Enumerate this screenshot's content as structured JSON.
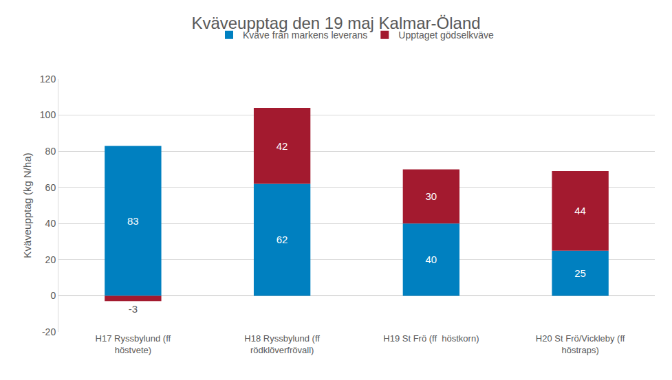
{
  "chart_data": {
    "type": "bar",
    "title": "Kväveupptag den 19 maj Kalmar-Öland",
    "y_label": "Kväveupptag (kg N/ha)",
    "categories": [
      "H17 Ryssbylund (ff höstvete)",
      "H18 Ryssbylund (ff rödklöverfrövall)",
      "H19 St Frö (ff  höstkorn)",
      "H20 St Frö/Vickleby (ff höstraps)"
    ],
    "series": [
      {
        "name": "Kväve från markens leverans",
        "color": "#0080c0",
        "values": [
          83,
          62,
          40,
          25
        ]
      },
      {
        "name": "Upptaget gödselkväve",
        "color": "#a31a2f",
        "values": [
          -3,
          42,
          30,
          44
        ]
      }
    ],
    "stacked": true,
    "data_labels": true,
    "legend": "top",
    "grid": true,
    "ylim": [
      -20,
      120
    ],
    "yticks": [
      -20,
      0,
      20,
      40,
      60,
      80,
      100,
      120
    ]
  }
}
